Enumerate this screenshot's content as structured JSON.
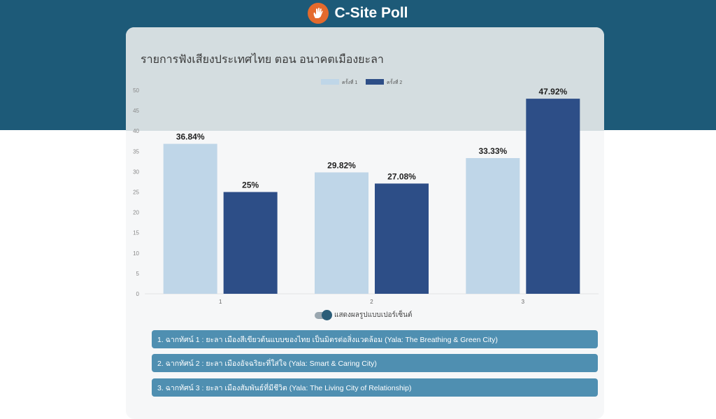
{
  "app": {
    "title": "C-Site Poll",
    "logo_icon": "raised-hand-icon"
  },
  "poll": {
    "title": "รายการฟังเสียงประเทศไทย ตอน อนาคตเมืองยะลา",
    "toggle_label": "แสดงผลรูปแบบเปอร์เซ็นต์",
    "options": [
      {
        "label": "1. ฉากทัศน์ 1 : ยะลา เมืองสีเขียวต้นแบบของไทย เป็นมิตรต่อสิ่งแวดล้อม (Yala: The Breathing & Green City)"
      },
      {
        "label": "2. ฉากทัศน์ 2 : ยะลา เมืองอัจฉริยะที่ใส่ใจ (Yala: Smart & Caring City)"
      },
      {
        "label": "3. ฉากทัศน์ 3 : ยะลา เมืองสัมพันธ์ที่มีชีวิต (Yala: The Living City of Relationship)"
      }
    ]
  },
  "colors": {
    "header_bg": "#1d5a78",
    "series1": "#bfd6e8",
    "series2": "#2d4e87",
    "option_bg": "#4f8fb1"
  },
  "chart_data": {
    "type": "bar",
    "categories": [
      "1",
      "2",
      "3"
    ],
    "series": [
      {
        "name": "ครั้งที่ 1",
        "values": [
          36.84,
          29.82,
          33.33
        ],
        "labels": [
          "36.84%",
          "29.82%",
          "33.33%"
        ]
      },
      {
        "name": "ครั้งที่ 2",
        "values": [
          25,
          27.08,
          47.92
        ],
        "labels": [
          "25%",
          "27.08%",
          "47.92%"
        ]
      }
    ],
    "ylim": [
      0,
      50
    ],
    "yticks": [
      0,
      5,
      10,
      15,
      20,
      25,
      30,
      35,
      40,
      45,
      50
    ],
    "legend": "top-center",
    "grid": false
  }
}
